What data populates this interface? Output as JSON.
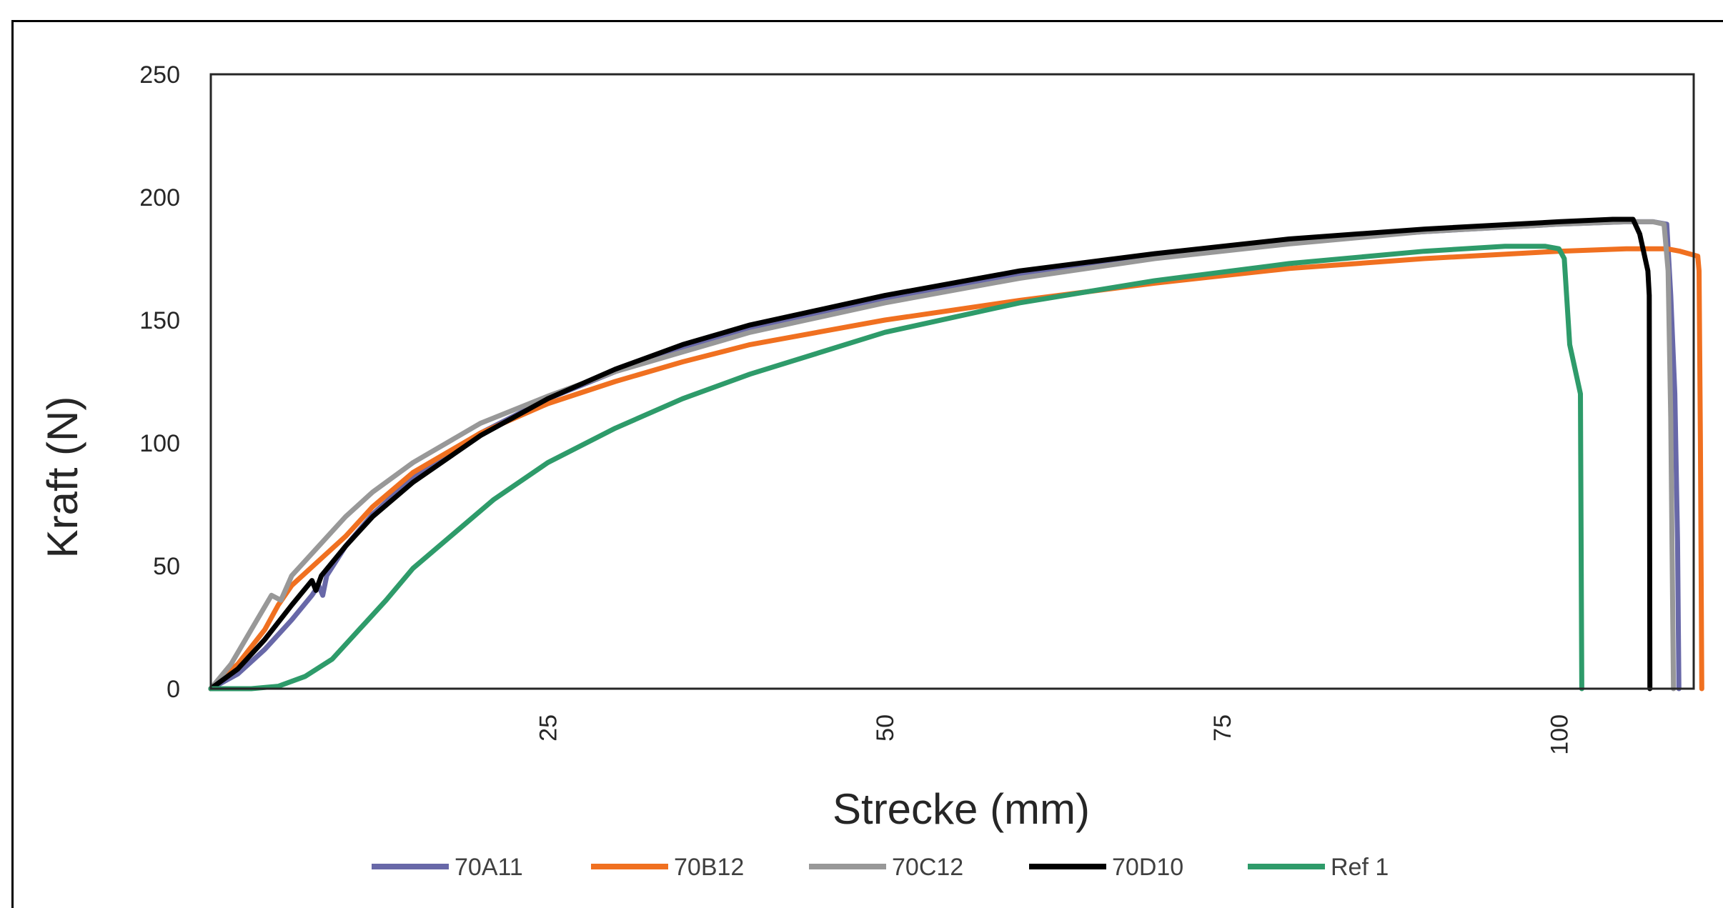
{
  "chart_data": {
    "type": "line",
    "xlabel": "Strecke (mm)",
    "ylabel": "Kraft (N)",
    "xlim": [
      0,
      110
    ],
    "ylim": [
      0,
      250
    ],
    "xticks": [
      "25",
      "50",
      "75",
      "100"
    ],
    "yticks": [
      "0",
      "50",
      "100",
      "150",
      "200",
      "250"
    ],
    "grid": false,
    "legend_position": "bottom",
    "series": [
      {
        "name": "70A11",
        "color": "#6868a8",
        "points": [
          [
            0,
            0
          ],
          [
            2,
            6
          ],
          [
            4,
            16
          ],
          [
            6,
            28
          ],
          [
            7.5,
            38
          ],
          [
            8,
            42
          ],
          [
            8.3,
            38
          ],
          [
            8.6,
            46
          ],
          [
            10,
            58
          ],
          [
            12,
            71
          ],
          [
            15,
            86
          ],
          [
            20,
            104
          ],
          [
            25,
            118
          ],
          [
            30,
            129
          ],
          [
            35,
            138
          ],
          [
            40,
            146
          ],
          [
            50,
            158
          ],
          [
            60,
            168
          ],
          [
            70,
            176
          ],
          [
            80,
            182
          ],
          [
            90,
            186
          ],
          [
            100,
            189
          ],
          [
            105,
            190
          ],
          [
            107,
            190
          ],
          [
            108,
            189
          ],
          [
            108.3,
            160
          ],
          [
            108.6,
            120
          ],
          [
            108.8,
            60
          ],
          [
            108.9,
            0
          ]
        ]
      },
      {
        "name": "70B12",
        "color": "#f07020",
        "points": [
          [
            0,
            0
          ],
          [
            2,
            10
          ],
          [
            4,
            24
          ],
          [
            5,
            34
          ],
          [
            6,
            42
          ],
          [
            8,
            52
          ],
          [
            10,
            62
          ],
          [
            12,
            74
          ],
          [
            15,
            88
          ],
          [
            20,
            104
          ],
          [
            25,
            116
          ],
          [
            30,
            125
          ],
          [
            35,
            133
          ],
          [
            40,
            140
          ],
          [
            50,
            150
          ],
          [
            60,
            158
          ],
          [
            70,
            165
          ],
          [
            80,
            171
          ],
          [
            90,
            175
          ],
          [
            100,
            178
          ],
          [
            105,
            179
          ],
          [
            108,
            179
          ],
          [
            109,
            178
          ],
          [
            110.3,
            176
          ],
          [
            110.4,
            170
          ],
          [
            110.5,
            100
          ],
          [
            110.6,
            0
          ]
        ]
      },
      {
        "name": "70C12",
        "color": "#989898",
        "points": [
          [
            0,
            0
          ],
          [
            1.5,
            10
          ],
          [
            3,
            24
          ],
          [
            4.5,
            38
          ],
          [
            5.2,
            36
          ],
          [
            6,
            46
          ],
          [
            8,
            58
          ],
          [
            10,
            70
          ],
          [
            12,
            80
          ],
          [
            15,
            92
          ],
          [
            20,
            108
          ],
          [
            25,
            119
          ],
          [
            30,
            129
          ],
          [
            35,
            137
          ],
          [
            40,
            145
          ],
          [
            50,
            157
          ],
          [
            60,
            167
          ],
          [
            70,
            175
          ],
          [
            80,
            181
          ],
          [
            90,
            186
          ],
          [
            100,
            189
          ],
          [
            105,
            190
          ],
          [
            107,
            190
          ],
          [
            107.8,
            189
          ],
          [
            108.1,
            170
          ],
          [
            108.3,
            110
          ],
          [
            108.5,
            0
          ]
        ]
      },
      {
        "name": "70D10",
        "color": "#000000",
        "points": [
          [
            0,
            0
          ],
          [
            2,
            8
          ],
          [
            4,
            20
          ],
          [
            6,
            34
          ],
          [
            7.5,
            44
          ],
          [
            7.8,
            40
          ],
          [
            8.2,
            46
          ],
          [
            10,
            58
          ],
          [
            12,
            70
          ],
          [
            15,
            84
          ],
          [
            20,
            103
          ],
          [
            25,
            118
          ],
          [
            30,
            130
          ],
          [
            35,
            140
          ],
          [
            40,
            148
          ],
          [
            50,
            160
          ],
          [
            60,
            170
          ],
          [
            70,
            177
          ],
          [
            80,
            183
          ],
          [
            90,
            187
          ],
          [
            100,
            190
          ],
          [
            104,
            191
          ],
          [
            105.5,
            191
          ],
          [
            106,
            185
          ],
          [
            106.6,
            170
          ],
          [
            106.7,
            160
          ],
          [
            106.75,
            0
          ]
        ]
      },
      {
        "name": "Ref 1",
        "color": "#2e9b6a",
        "points": [
          [
            0,
            0
          ],
          [
            3,
            0
          ],
          [
            5,
            1
          ],
          [
            7,
            5
          ],
          [
            9,
            12
          ],
          [
            11,
            24
          ],
          [
            13,
            36
          ],
          [
            15,
            49
          ],
          [
            18,
            63
          ],
          [
            21,
            77
          ],
          [
            25,
            92
          ],
          [
            30,
            106
          ],
          [
            35,
            118
          ],
          [
            40,
            128
          ],
          [
            50,
            145
          ],
          [
            60,
            157
          ],
          [
            70,
            166
          ],
          [
            80,
            173
          ],
          [
            90,
            178
          ],
          [
            96,
            180
          ],
          [
            99,
            180
          ],
          [
            100,
            179
          ],
          [
            100.4,
            175
          ],
          [
            100.8,
            140
          ],
          [
            101.6,
            120
          ],
          [
            101.7,
            0
          ]
        ]
      }
    ]
  }
}
